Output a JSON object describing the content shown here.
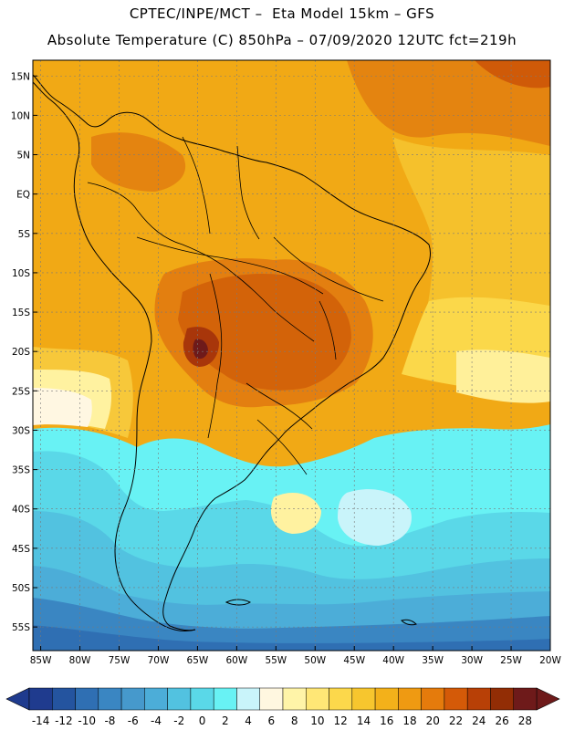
{
  "header": {
    "line1": "CPTEC/INPE/MCT –  Eta Model 15km – GFS",
    "line2": "Absolute Temperature (C) 850hPa – 07/09/2020 12UTC fct=219h"
  },
  "map": {
    "lat_labels": [
      "15N",
      "10N",
      "5N",
      "EQ",
      "5S",
      "10S",
      "15S",
      "20S",
      "25S",
      "30S",
      "35S",
      "40S",
      "45S",
      "50S",
      "55S"
    ],
    "lat_values": [
      15,
      10,
      5,
      0,
      -5,
      -10,
      -15,
      -20,
      -25,
      -30,
      -35,
      -40,
      -45,
      -50,
      -55
    ],
    "lon_labels": [
      "85W",
      "80W",
      "75W",
      "70W",
      "65W",
      "60W",
      "55W",
      "50W",
      "45W",
      "40W",
      "35W",
      "30W",
      "25W",
      "20W"
    ],
    "lon_values": [
      -85,
      -80,
      -75,
      -70,
      -65,
      -60,
      -55,
      -50,
      -45,
      -40,
      -35,
      -30,
      -25,
      -20
    ],
    "lat_range": [
      -58,
      17
    ],
    "lon_range": [
      -86,
      -20
    ]
  },
  "colorbar": {
    "labels": [
      "-14",
      "-12",
      "-10",
      "-8",
      "-6",
      "-4",
      "-2",
      "0",
      "2",
      "4",
      "6",
      "8",
      "10",
      "12",
      "14",
      "16",
      "18",
      "20",
      "22",
      "24",
      "26",
      "28"
    ],
    "colors": [
      "#1f3b8e",
      "#24549f",
      "#2f6fb3",
      "#3a86c2",
      "#4699cc",
      "#4cadd8",
      "#52c2e0",
      "#5ad8e8",
      "#68f2f4",
      "#c9f4fa",
      "#fff7e0",
      "#fff4a8",
      "#ffe776",
      "#fcd84b",
      "#f7c62e",
      "#f3b11a",
      "#ef9a12",
      "#e57b0c",
      "#d45a08",
      "#b84006",
      "#922d05",
      "#6e1a1a"
    ]
  }
}
